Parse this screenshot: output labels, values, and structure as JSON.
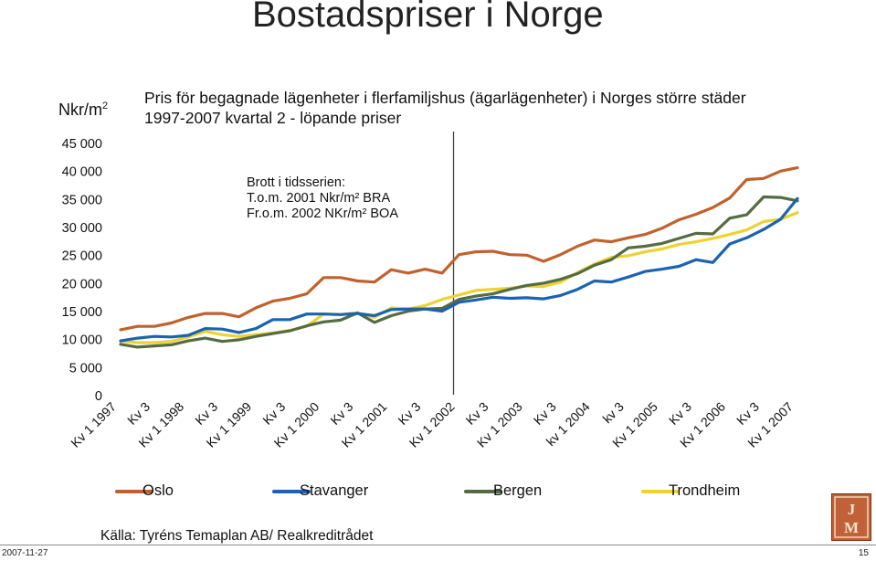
{
  "page": {
    "title": "Bostadspriser i Norge",
    "subtitle": "Pris för begagnade lägenheter i flerfamiljshus (ägarlägenheter) i Norges större städer 1997-2007 kvartal 2 - löpande priser",
    "unit": "Nkr/m2",
    "note_lines": [
      "Brott i tidsserien:",
      "T.o.m. 2001 Nkr/m² BRA",
      "Fr.o.m. 2002 NKr/m² BOA"
    ],
    "source": "Källa: Tyréns Temaplan AB/ Realkreditrådet",
    "footer_date": "2007-11-27",
    "footer_page": "15",
    "logo_text": "JM"
  },
  "chart_data": {
    "type": "line",
    "title": "Pris för begagnade lägenheter i flerfamiljshus (ägarlägenheter) i Norges större städer 1997-2007 kvartal 2 - löpande priser",
    "ylabel": "Nkr/m2",
    "xlabel": "",
    "ylim": [
      0,
      45000
    ],
    "yticks": [
      0,
      5000,
      10000,
      15000,
      20000,
      25000,
      30000,
      35000,
      40000,
      45000
    ],
    "ytick_labels": [
      "0",
      "5 000",
      "10 000",
      "15 000",
      "20 000",
      "25 000",
      "30 000",
      "35 000",
      "40 000",
      "45 000"
    ],
    "x_tick_labels": [
      "Kv 1 1997",
      "Kv 3",
      "Kv 1 1998",
      "Kv 3",
      "Kv 1 1999",
      "Kv 3",
      "Kv 1 2000",
      "Kv 3",
      "Kv 1 2001",
      "Kv 3",
      "Kv 1 2002",
      "Kv 3",
      "Kv 1 2003",
      "Kv 3",
      "kv 1 2004",
      "kv 3",
      "Kv 1 2005",
      "Kv 3",
      "Kv 1 2006",
      "Kv 3",
      "Kv 1 2007"
    ],
    "break_after_index": 20,
    "grid": false,
    "legend_position": "bottom",
    "series": [
      {
        "name": "Oslo",
        "color": "#c0622d",
        "values": [
          11600,
          12200,
          12200,
          12800,
          13800,
          14500,
          14500,
          13900,
          15500,
          16700,
          17200,
          18000,
          20900,
          20900,
          20300,
          20100,
          22300,
          21700,
          22400,
          21700,
          25000,
          25500,
          25600,
          25000,
          24900,
          23800,
          25000,
          26500,
          27600,
          27300,
          28000,
          28600,
          29700,
          31200,
          32200,
          33400,
          35100,
          38400,
          38600,
          39900,
          40500
        ]
      },
      {
        "name": "Stavanger",
        "color": "#1b63b0",
        "values": [
          9600,
          10100,
          10400,
          10300,
          10600,
          11800,
          11700,
          11100,
          11800,
          13400,
          13400,
          14400,
          14400,
          14300,
          14500,
          14100,
          15200,
          15300,
          15300,
          14900,
          16500,
          16900,
          17400,
          17200,
          17300,
          17100,
          17700,
          18800,
          20300,
          20100,
          21000,
          22000,
          22400,
          22900,
          24100,
          23600,
          26900,
          28000,
          29500,
          31300,
          35000
        ]
      },
      {
        "name": "Bergen",
        "color": "#556b42",
        "values": [
          9000,
          8500,
          8700,
          8900,
          9600,
          10100,
          9500,
          9800,
          10400,
          10900,
          11400,
          12300,
          13000,
          13300,
          14600,
          12900,
          14100,
          14900,
          15300,
          15400,
          17000,
          17600,
          18000,
          18800,
          19500,
          19900,
          20600,
          21600,
          23100,
          24100,
          26200,
          26500,
          27000,
          27900,
          28800,
          28700,
          31500,
          32100,
          35300,
          35200,
          34600
        ]
      },
      {
        "name": "Trondheim",
        "color": "#ecd232",
        "values": [
          9600,
          9300,
          9300,
          9500,
          10300,
          11300,
          10700,
          10400,
          10700,
          11000,
          11500,
          12200,
          14400,
          14300,
          14600,
          13800,
          15500,
          15300,
          15900,
          17000,
          17800,
          18600,
          18800,
          19000,
          19400,
          19300,
          20100,
          21800,
          23300,
          24500,
          24800,
          25500,
          26000,
          26800,
          27300,
          27900,
          28600,
          29400,
          30900,
          31300,
          32500
        ]
      }
    ]
  }
}
